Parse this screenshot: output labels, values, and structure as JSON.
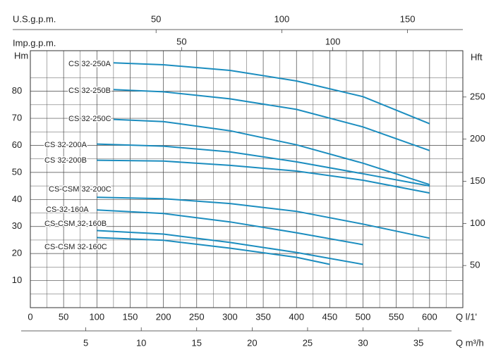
{
  "chart_data": {
    "type": "line",
    "y_label": "Hm",
    "y2_label": "Hft",
    "x_label": "Q  l/1'",
    "x2_label": "Q  m³/h",
    "x3_label": "U.S.g.p.m.",
    "x4_label": "Imp.g.p.m.",
    "xlim": [
      0,
      650
    ],
    "xticks": [
      0,
      50,
      100,
      150,
      200,
      250,
      300,
      350,
      400,
      450,
      500,
      550,
      600
    ],
    "x2lim": [
      0,
      39
    ],
    "x2ticks": [
      5,
      10,
      15,
      20,
      25,
      30,
      35
    ],
    "x3lim": [
      0,
      172
    ],
    "x3ticks": [
      50,
      100,
      150
    ],
    "x4lim": [
      0,
      143
    ],
    "x4ticks": [
      50,
      100
    ],
    "ylim": [
      0,
      95
    ],
    "yticks": [
      10,
      20,
      30,
      40,
      50,
      60,
      70,
      80
    ],
    "y2lim": [
      0,
      305
    ],
    "y2ticks": [
      50,
      100,
      150,
      200,
      250
    ],
    "grid": true,
    "color": "#1b8dbf",
    "series": [
      {
        "name": "CS 32-250A",
        "x": [
          125,
          200,
          300,
          400,
          500,
          600
        ],
        "values": [
          90.5,
          89.8,
          87.7,
          83.8,
          78,
          68
        ]
      },
      {
        "name": "CS 32-250B",
        "x": [
          125,
          200,
          300,
          400,
          500,
          600
        ],
        "values": [
          80.6,
          79.8,
          77.2,
          73.3,
          66.8,
          58.1
        ]
      },
      {
        "name": "CS 32-250C",
        "x": [
          125,
          200,
          300,
          400,
          500,
          600
        ],
        "values": [
          69.6,
          68.8,
          65.4,
          60.2,
          53.4,
          45.5
        ]
      },
      {
        "name": "CS 32-200A",
        "x": [
          100,
          200,
          300,
          400,
          500,
          600
        ],
        "values": [
          60.5,
          59.7,
          57.6,
          53.9,
          49.5,
          45
        ]
      },
      {
        "name": "CS 32-200B",
        "x": [
          100,
          200,
          300,
          400,
          500,
          600
        ],
        "values": [
          54.5,
          54.2,
          52.6,
          50.5,
          47.1,
          42.4
        ]
      },
      {
        "name": "CS-CSM 32-200C",
        "x": [
          100,
          200,
          300,
          400,
          500,
          600
        ],
        "values": [
          40.8,
          40.3,
          38.5,
          35.6,
          30.9,
          25.7
        ]
      },
      {
        "name": "CS-32-160A",
        "x": [
          100,
          200,
          300,
          400,
          500
        ],
        "values": [
          36.1,
          34.8,
          31.7,
          27.7,
          23.3
        ]
      },
      {
        "name": "CS-CSM 32-160B",
        "x": [
          100,
          200,
          300,
          400,
          500
        ],
        "values": [
          28.5,
          27.2,
          24.1,
          20.4,
          16
        ]
      },
      {
        "name": "CS-CSM 32-160C",
        "x": [
          100,
          200,
          300,
          400,
          450
        ],
        "values": [
          25.9,
          24.9,
          22,
          18.6,
          16
        ]
      }
    ]
  }
}
